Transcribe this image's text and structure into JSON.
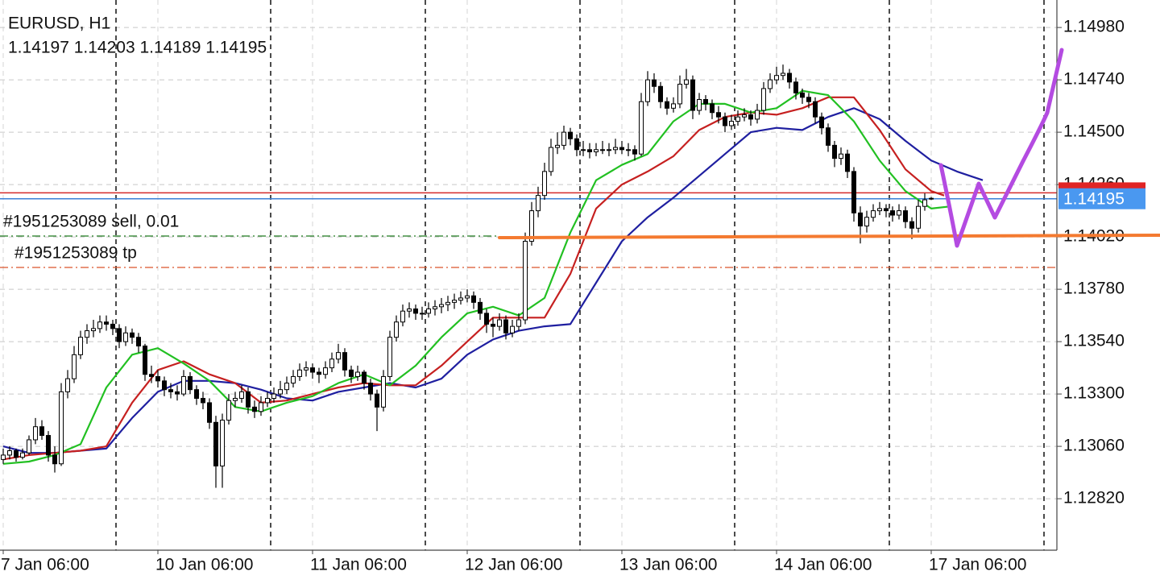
{
  "chart_data": {
    "type": "candlestick",
    "title": "EURUSD, H1",
    "subtitle": "1.14197 1.14203 1.14189 1.14195",
    "grid": true,
    "xlim": [
      -0.5,
      163.5
    ],
    "xticks": [
      {
        "value": 0,
        "label": "7 Jan 06:00"
      },
      {
        "value": 24,
        "label": "10 Jan 06:00"
      },
      {
        "value": 48,
        "label": "11 Jan 06:00"
      },
      {
        "value": 72,
        "label": "12 Jan 06:00"
      },
      {
        "value": 96,
        "label": "13 Jan 06:00"
      },
      {
        "value": 120,
        "label": "14 Jan 06:00"
      },
      {
        "value": 144,
        "label": "17 Jan 06:00"
      }
    ],
    "ylim": [
      1.12584,
      1.15106
    ],
    "yticks": [
      {
        "value": 1.1498,
        "label": "1.14980"
      },
      {
        "value": 1.1474,
        "label": "1.14740"
      },
      {
        "value": 1.145,
        "label": "1.14500"
      },
      {
        "value": 1.1426,
        "label": "1.14260"
      },
      {
        "value": 1.1402,
        "label": "1.14020"
      },
      {
        "value": 1.1378,
        "label": "1.13780"
      },
      {
        "value": 1.1354,
        "label": "1.13540"
      },
      {
        "value": 1.133,
        "label": "1.13300"
      },
      {
        "value": 1.1306,
        "label": "1.13060"
      },
      {
        "value": 1.1282,
        "label": "1.12820"
      }
    ],
    "ohlc": [
      [
        1.13,
        1.1305,
        1.1298,
        1.1302
      ],
      [
        1.1302,
        1.1306,
        1.13,
        1.1304
      ],
      [
        1.1304,
        1.1305,
        1.1299,
        1.1301
      ],
      [
        1.1301,
        1.1305,
        1.13,
        1.1303
      ],
      [
        1.1303,
        1.1311,
        1.1302,
        1.1309
      ],
      [
        1.1309,
        1.1319,
        1.1307,
        1.1315
      ],
      [
        1.1315,
        1.1318,
        1.1309,
        1.1311
      ],
      [
        1.1311,
        1.1313,
        1.1299,
        1.1302
      ],
      [
        1.1302,
        1.1306,
        1.1294,
        1.1298
      ],
      [
        1.1298,
        1.1335,
        1.1297,
        1.1331
      ],
      [
        1.1331,
        1.1341,
        1.1328,
        1.1337
      ],
      [
        1.1337,
        1.1352,
        1.1335,
        1.1348
      ],
      [
        1.1348,
        1.1359,
        1.1346,
        1.1356
      ],
      [
        1.1356,
        1.1362,
        1.1353,
        1.1359
      ],
      [
        1.1359,
        1.1364,
        1.1356,
        1.136
      ],
      [
        1.136,
        1.1366,
        1.1358,
        1.1363
      ],
      [
        1.1363,
        1.1366,
        1.1359,
        1.1362
      ],
      [
        1.1362,
        1.1364,
        1.1357,
        1.136
      ],
      [
        1.136,
        1.1362,
        1.1351,
        1.1354
      ],
      [
        1.1354,
        1.1361,
        1.1352,
        1.1358
      ],
      [
        1.1358,
        1.136,
        1.1353,
        1.1356
      ],
      [
        1.1356,
        1.1358,
        1.1349,
        1.1352
      ],
      [
        1.1352,
        1.1353,
        1.1336,
        1.1339
      ],
      [
        1.1339,
        1.1343,
        1.1335,
        1.1338
      ],
      [
        1.1338,
        1.1341,
        1.1333,
        1.1336
      ],
      [
        1.1336,
        1.1338,
        1.1329,
        1.1332
      ],
      [
        1.1332,
        1.1335,
        1.1328,
        1.1331
      ],
      [
        1.1331,
        1.1334,
        1.1327,
        1.133
      ],
      [
        1.133,
        1.1341,
        1.1329,
        1.1338
      ],
      [
        1.1338,
        1.134,
        1.133,
        1.1332
      ],
      [
        1.1332,
        1.1334,
        1.1325,
        1.1328
      ],
      [
        1.1328,
        1.1331,
        1.1323,
        1.1326
      ],
      [
        1.1326,
        1.1328,
        1.1314,
        1.1317
      ],
      [
        1.1317,
        1.132,
        1.1287,
        1.1297
      ],
      [
        1.1297,
        1.1321,
        1.1287,
        1.1318
      ],
      [
        1.1318,
        1.133,
        1.1316,
        1.1327
      ],
      [
        1.1327,
        1.1331,
        1.1324,
        1.1328
      ],
      [
        1.1328,
        1.1334,
        1.1326,
        1.1331
      ],
      [
        1.1331,
        1.1333,
        1.1321,
        1.1324
      ],
      [
        1.1324,
        1.1327,
        1.1319,
        1.1322
      ],
      [
        1.1322,
        1.1329,
        1.132,
        1.1326
      ],
      [
        1.1326,
        1.1331,
        1.1324,
        1.1328
      ],
      [
        1.1328,
        1.1333,
        1.1326,
        1.133
      ],
      [
        1.133,
        1.1336,
        1.1328,
        1.1332
      ],
      [
        1.1332,
        1.1338,
        1.133,
        1.1335
      ],
      [
        1.1335,
        1.1341,
        1.1333,
        1.1338
      ],
      [
        1.1338,
        1.1344,
        1.1336,
        1.1341
      ],
      [
        1.1341,
        1.1345,
        1.1338,
        1.1342
      ],
      [
        1.1342,
        1.1344,
        1.1337,
        1.134
      ],
      [
        1.134,
        1.1342,
        1.1335,
        1.1339
      ],
      [
        1.1339,
        1.1345,
        1.1337,
        1.1342
      ],
      [
        1.1342,
        1.1349,
        1.134,
        1.1346
      ],
      [
        1.1346,
        1.1353,
        1.1344,
        1.1349
      ],
      [
        1.1349,
        1.1351,
        1.1338,
        1.1341
      ],
      [
        1.1341,
        1.1343,
        1.1335,
        1.1338
      ],
      [
        1.1338,
        1.1343,
        1.1336,
        1.134
      ],
      [
        1.134,
        1.1341,
        1.1332,
        1.1335
      ],
      [
        1.1335,
        1.1337,
        1.1327,
        1.133
      ],
      [
        1.133,
        1.1332,
        1.1313,
        1.1324
      ],
      [
        1.1324,
        1.1341,
        1.1322,
        1.1338
      ],
      [
        1.1338,
        1.1359,
        1.1336,
        1.1356
      ],
      [
        1.1356,
        1.1366,
        1.1354,
        1.1363
      ],
      [
        1.1363,
        1.1371,
        1.1361,
        1.1368
      ],
      [
        1.1368,
        1.1372,
        1.1365,
        1.1369
      ],
      [
        1.1369,
        1.1371,
        1.1364,
        1.1367
      ],
      [
        1.1367,
        1.137,
        1.1364,
        1.1367
      ],
      [
        1.1367,
        1.1372,
        1.1365,
        1.1369
      ],
      [
        1.1369,
        1.1373,
        1.1366,
        1.137
      ],
      [
        1.137,
        1.1374,
        1.1367,
        1.1371
      ],
      [
        1.1371,
        1.1375,
        1.1368,
        1.1372
      ],
      [
        1.1372,
        1.1376,
        1.1369,
        1.1373
      ],
      [
        1.1373,
        1.1377,
        1.1371,
        1.1374
      ],
      [
        1.1374,
        1.1378,
        1.1372,
        1.1375
      ],
      [
        1.1375,
        1.1377,
        1.1369,
        1.1372
      ],
      [
        1.1372,
        1.1374,
        1.1364,
        1.1367
      ],
      [
        1.1367,
        1.1369,
        1.1358,
        1.1362
      ],
      [
        1.1362,
        1.1365,
        1.1356,
        1.1361
      ],
      [
        1.1361,
        1.1367,
        1.1359,
        1.1364
      ],
      [
        1.1364,
        1.1366,
        1.1355,
        1.1358
      ],
      [
        1.1358,
        1.1364,
        1.1356,
        1.1361
      ],
      [
        1.1361,
        1.1367,
        1.1359,
        1.1364
      ],
      [
        1.1364,
        1.1404,
        1.1362,
        1.14
      ],
      [
        1.14,
        1.1418,
        1.1398,
        1.1414
      ],
      [
        1.1414,
        1.1425,
        1.1411,
        1.1421
      ],
      [
        1.1421,
        1.1436,
        1.1419,
        1.1432
      ],
      [
        1.1432,
        1.1447,
        1.143,
        1.1443
      ],
      [
        1.1443,
        1.145,
        1.144,
        1.1444
      ],
      [
        1.1444,
        1.1453,
        1.1442,
        1.145
      ],
      [
        1.145,
        1.1452,
        1.1444,
        1.1447
      ],
      [
        1.1447,
        1.1449,
        1.1439,
        1.1442
      ],
      [
        1.1442,
        1.1446,
        1.1439,
        1.1442
      ],
      [
        1.1442,
        1.1445,
        1.1438,
        1.1441
      ],
      [
        1.1441,
        1.1445,
        1.1439,
        1.1442
      ],
      [
        1.1442,
        1.1446,
        1.144,
        1.1442
      ],
      [
        1.1442,
        1.1445,
        1.1439,
        1.1442
      ],
      [
        1.1442,
        1.1447,
        1.144,
        1.1443
      ],
      [
        1.1443,
        1.1446,
        1.144,
        1.1442
      ],
      [
        1.1442,
        1.1445,
        1.1439,
        1.1442
      ],
      [
        1.1442,
        1.1444,
        1.1437,
        1.144
      ],
      [
        1.144,
        1.1468,
        1.1439,
        1.1464
      ],
      [
        1.1464,
        1.1478,
        1.1462,
        1.1474
      ],
      [
        1.1474,
        1.1477,
        1.1468,
        1.1471
      ],
      [
        1.1471,
        1.1473,
        1.1461,
        1.1464
      ],
      [
        1.1464,
        1.1466,
        1.1458,
        1.1461
      ],
      [
        1.1461,
        1.1466,
        1.1459,
        1.1463
      ],
      [
        1.1463,
        1.1476,
        1.1461,
        1.1472
      ],
      [
        1.1472,
        1.1479,
        1.147,
        1.1474
      ],
      [
        1.1474,
        1.1476,
        1.1456,
        1.146
      ],
      [
        1.146,
        1.1468,
        1.1458,
        1.1465
      ],
      [
        1.1465,
        1.1467,
        1.146,
        1.1463
      ],
      [
        1.1463,
        1.1465,
        1.1456,
        1.1459
      ],
      [
        1.1459,
        1.1462,
        1.1454,
        1.1457
      ],
      [
        1.1457,
        1.1459,
        1.145,
        1.1453
      ],
      [
        1.1453,
        1.1458,
        1.1451,
        1.1455
      ],
      [
        1.1455,
        1.146,
        1.1453,
        1.1457
      ],
      [
        1.1457,
        1.1461,
        1.1455,
        1.1458
      ],
      [
        1.1458,
        1.146,
        1.1453,
        1.1456
      ],
      [
        1.1456,
        1.1463,
        1.1454,
        1.146
      ],
      [
        1.146,
        1.1473,
        1.1458,
        1.147
      ],
      [
        1.147,
        1.1477,
        1.1468,
        1.1474
      ],
      [
        1.1474,
        1.148,
        1.1472,
        1.1476
      ],
      [
        1.1476,
        1.1481,
        1.1474,
        1.1477
      ],
      [
        1.1477,
        1.1479,
        1.147,
        1.1473
      ],
      [
        1.1473,
        1.1475,
        1.1465,
        1.1468
      ],
      [
        1.1468,
        1.147,
        1.1463,
        1.1466
      ],
      [
        1.1466,
        1.1468,
        1.1461,
        1.1464
      ],
      [
        1.1464,
        1.1466,
        1.1454,
        1.1457
      ],
      [
        1.1457,
        1.1459,
        1.1449,
        1.1452
      ],
      [
        1.1452,
        1.1454,
        1.1441,
        1.1444
      ],
      [
        1.1444,
        1.1446,
        1.1434,
        1.1438
      ],
      [
        1.1438,
        1.1443,
        1.1435,
        1.144
      ],
      [
        1.144,
        1.1442,
        1.1429,
        1.1432
      ],
      [
        1.1432,
        1.1434,
        1.1409,
        1.1413
      ],
      [
        1.1413,
        1.1416,
        1.1399,
        1.1407
      ],
      [
        1.1407,
        1.1414,
        1.1404,
        1.1411
      ],
      [
        1.1411,
        1.1417,
        1.1409,
        1.1414
      ],
      [
        1.1414,
        1.1418,
        1.1412,
        1.1415
      ],
      [
        1.1415,
        1.1417,
        1.1411,
        1.1414
      ],
      [
        1.1414,
        1.1416,
        1.1409,
        1.1412
      ],
      [
        1.1412,
        1.1417,
        1.141,
        1.1414
      ],
      [
        1.1414,
        1.1416,
        1.1406,
        1.1409
      ],
      [
        1.1409,
        1.1411,
        1.1401,
        1.1406
      ],
      [
        1.1406,
        1.1419,
        1.1404,
        1.1416
      ],
      [
        1.1416,
        1.1422,
        1.1414,
        1.1419
      ],
      [
        1.14197,
        1.14203,
        1.14189,
        1.14195
      ]
    ],
    "series": [
      {
        "color": "#1f1fa0",
        "x": [
          0,
          4,
          8,
          12,
          16,
          20,
          24,
          28,
          32,
          36,
          40,
          44,
          48,
          52,
          56,
          60,
          64,
          68,
          72,
          76,
          80,
          84,
          88,
          92,
          96,
          100,
          104,
          108,
          112,
          116,
          120,
          124,
          128,
          132,
          136,
          140,
          144,
          148,
          152
        ],
        "values": [
          1.1306,
          1.1303,
          1.1303,
          1.1304,
          1.1305,
          1.1319,
          1.1331,
          1.1336,
          1.1336,
          1.1335,
          1.1332,
          1.1328,
          1.1327,
          1.1331,
          1.1333,
          1.1335,
          1.1333,
          1.1337,
          1.1348,
          1.1355,
          1.1359,
          1.1361,
          1.1362,
          1.1381,
          1.14,
          1.1411,
          1.142,
          1.143,
          1.144,
          1.145,
          1.1452,
          1.1451,
          1.1457,
          1.1461,
          1.1456,
          1.1446,
          1.1437,
          1.1432,
          1.1428
        ]
      },
      {
        "color": "#c62020",
        "x": [
          0,
          4,
          8,
          12,
          16,
          20,
          24,
          28,
          32,
          36,
          40,
          44,
          48,
          52,
          56,
          60,
          64,
          68,
          72,
          76,
          80,
          84,
          88,
          92,
          96,
          100,
          104,
          108,
          112,
          116,
          120,
          124,
          128,
          132,
          136,
          140,
          144,
          146
        ],
        "values": [
          1.13,
          1.1302,
          1.1303,
          1.1304,
          1.1306,
          1.1326,
          1.1341,
          1.1345,
          1.1339,
          1.1335,
          1.1326,
          1.1327,
          1.133,
          1.1333,
          1.1335,
          1.1334,
          1.1334,
          1.1343,
          1.1354,
          1.1365,
          1.1365,
          1.1365,
          1.1385,
          1.1415,
          1.1426,
          1.1432,
          1.1439,
          1.1451,
          1.1457,
          1.1459,
          1.1458,
          1.1461,
          1.1466,
          1.1466,
          1.1451,
          1.1433,
          1.1423,
          1.1421
        ]
      },
      {
        "color": "#22c022",
        "x": [
          0,
          4,
          8,
          12,
          16,
          20,
          24,
          28,
          32,
          36,
          40,
          44,
          48,
          52,
          56,
          60,
          64,
          68,
          72,
          76,
          80,
          84,
          88,
          92,
          96,
          100,
          104,
          108,
          112,
          116,
          120,
          124,
          128,
          132,
          136,
          140,
          144,
          147
        ],
        "values": [
          1.1298,
          1.1299,
          1.1302,
          1.1307,
          1.1333,
          1.1348,
          1.1351,
          1.1344,
          1.1336,
          1.1324,
          1.1322,
          1.1326,
          1.1329,
          1.1335,
          1.1339,
          1.1334,
          1.1343,
          1.1356,
          1.1367,
          1.137,
          1.1366,
          1.1374,
          1.1404,
          1.1428,
          1.1435,
          1.144,
          1.1455,
          1.1463,
          1.1463,
          1.1459,
          1.1461,
          1.1469,
          1.1467,
          1.1455,
          1.1437,
          1.1423,
          1.1415,
          1.1416
        ]
      }
    ],
    "ask": 1.14222,
    "bid": 1.14195,
    "orders": [
      {
        "label": "#1951253089 sell, 0.01",
        "value": 1.14024,
        "color": "#1e7a1e"
      },
      {
        "label": "#1951253089 tp",
        "value": 1.1388,
        "color": "#d9552b"
      }
    ]
  }
}
